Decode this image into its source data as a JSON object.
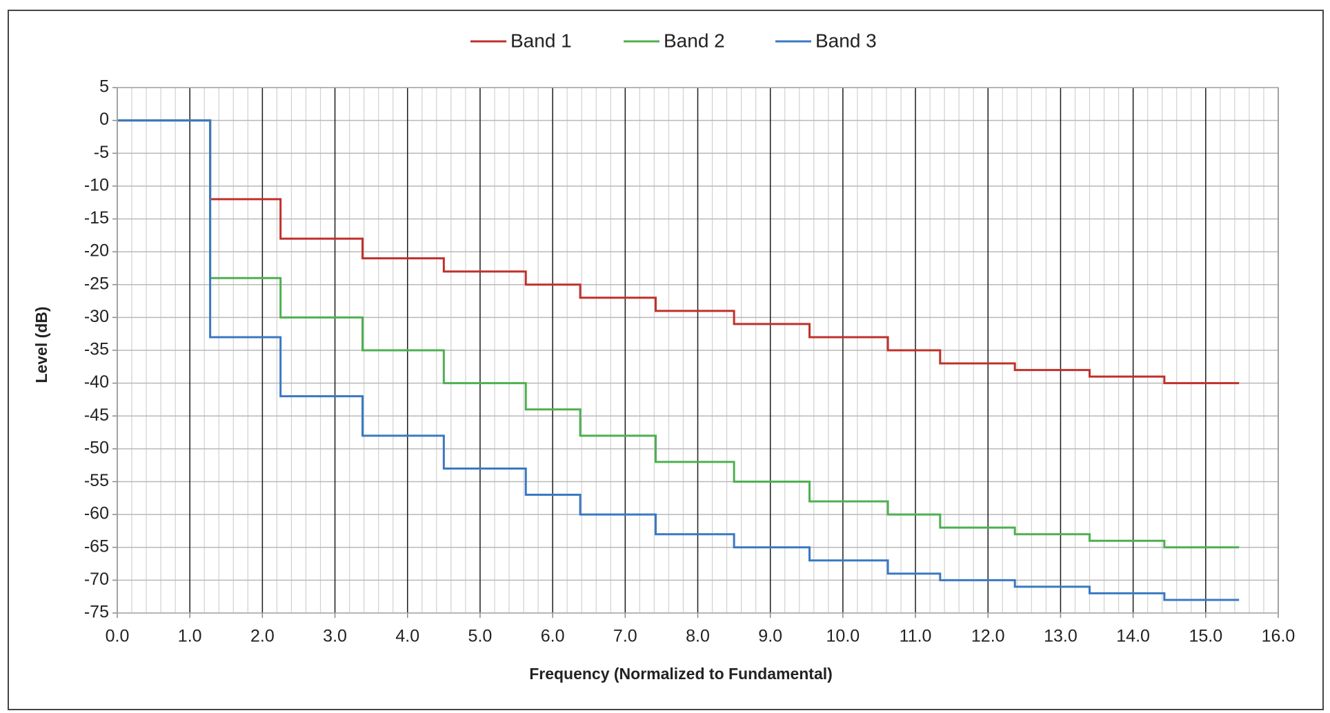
{
  "chart_data": {
    "type": "step",
    "x_label": "Frequency (Normalized to Fundamental)",
    "y_label": "Level (dB)",
    "x": [
      0,
      1.28,
      2.25,
      3.38,
      4.5,
      5.63,
      6.38,
      7.42,
      8.5,
      9.54,
      10.62,
      11.34,
      12.37,
      13.4,
      14.43,
      15.46
    ],
    "series": [
      {
        "name": "Band 1",
        "color": "#c0302a",
        "values": [
          0,
          -12,
          -18,
          -21,
          -23,
          -25,
          -27,
          -29,
          -31,
          -33,
          -35,
          -37,
          -38,
          -39,
          -40,
          -40
        ]
      },
      {
        "name": "Band 2",
        "color": "#4cb050",
        "values": [
          0,
          -24,
          -30,
          -35,
          -40,
          -44,
          -48,
          -52,
          -55,
          -58,
          -60,
          -62,
          -63,
          -64,
          -65,
          -65
        ]
      },
      {
        "name": "Band 3",
        "color": "#3a78c2",
        "values": [
          0,
          -33,
          -42,
          -48,
          -53,
          -57,
          -60,
          -63,
          -65,
          -67,
          -69,
          -70,
          -71,
          -72,
          -73,
          -73
        ]
      }
    ],
    "xlim": [
      0,
      16
    ],
    "ylim": [
      -75,
      5
    ],
    "xticks": [
      {
        "value": 0,
        "label": "0.0"
      },
      {
        "value": 1,
        "label": "1.0"
      },
      {
        "value": 2,
        "label": "2.0"
      },
      {
        "value": 3,
        "label": "3.0"
      },
      {
        "value": 4,
        "label": "4.0"
      },
      {
        "value": 5,
        "label": "5.0"
      },
      {
        "value": 6,
        "label": "6.0"
      },
      {
        "value": 7,
        "label": "7.0"
      },
      {
        "value": 8,
        "label": "8.0"
      },
      {
        "value": 9,
        "label": "9.0"
      },
      {
        "value": 10,
        "label": "10.0"
      },
      {
        "value": 11,
        "label": "11.0"
      },
      {
        "value": 12,
        "label": "12.0"
      },
      {
        "value": 13,
        "label": "13.0"
      },
      {
        "value": 14,
        "label": "14.0"
      },
      {
        "value": 15,
        "label": "15.0"
      },
      {
        "value": 16,
        "label": "16.0"
      }
    ],
    "yticks": [
      5,
      0,
      -5,
      -10,
      -15,
      -20,
      -25,
      -30,
      -35,
      -40,
      -45,
      -50,
      -55,
      -60,
      -65,
      -70,
      -75
    ],
    "grid": true,
    "legend": "top"
  }
}
